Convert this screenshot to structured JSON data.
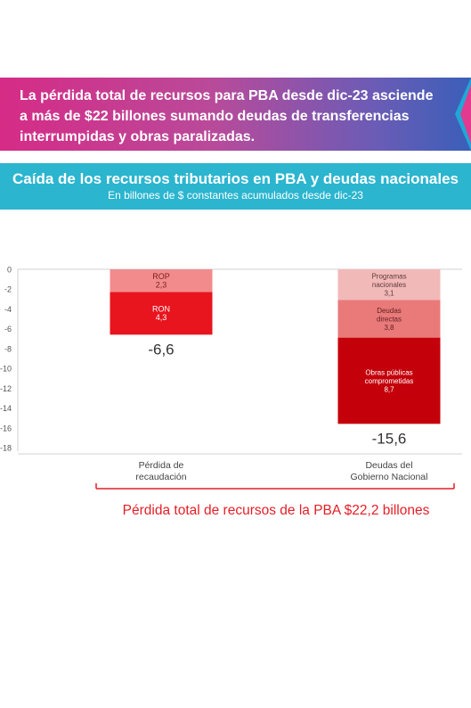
{
  "headline": "La pérdida total de recursos para PBA desde dic-23 asciende a más de $22 billones sumando deudas de transferencias interrumpidas y obras paralizadas.",
  "headline_lines": [
    "La pérdida total de recursos para PBA desde dic-23 asciende",
    "a más de $22 billones sumando deudas de transferencias",
    "interrumpidas y obras paralizadas."
  ],
  "colors": {
    "headline_start": "#d62b86",
    "headline_end": "#3a5fb8",
    "subheader_bg": "#2bb5cf",
    "total_text": "#e41e26"
  },
  "chart_data": {
    "type": "bar",
    "stacked": true,
    "title": "Caída de los recursos tributarios en PBA y deudas nacionales",
    "subtitle": "En billones de $ constantes acumulados desde dic-23",
    "categories": [
      "Pérdida de recaudación",
      "Deudas del Gobierno Nacional"
    ],
    "category_lines": [
      [
        "Pérdida de",
        "recaudación"
      ],
      [
        "Deudas del",
        "Gobierno Nacional"
      ]
    ],
    "ylim": [
      -18,
      0
    ],
    "yticks": [
      0,
      -2,
      -4,
      -6,
      -8,
      -10,
      -12,
      -14,
      -16,
      -18
    ],
    "grid": false,
    "bars": [
      {
        "category": "Pérdida de recaudación",
        "total": -6.6,
        "total_label": "-6,6",
        "segments": [
          {
            "name_lines": [
              "ROP"
            ],
            "value": -2.3,
            "value_label": "2,3",
            "color": "#f28b8b",
            "text_color": "#7a1f1f"
          },
          {
            "name_lines": [
              "RON"
            ],
            "value": -4.3,
            "value_label": "4,3",
            "color": "#e8141e",
            "text_color": "#ffffff"
          }
        ]
      },
      {
        "category": "Deudas del Gobierno Nacional",
        "total": -15.6,
        "total_label": "-15,6",
        "segments": [
          {
            "name_lines": [
              "Programas",
              "nacionales"
            ],
            "value": -3.1,
            "value_label": "3,1",
            "color": "#f2b9b9",
            "text_color": "#5e3a3a"
          },
          {
            "name_lines": [
              "Deudas",
              "directas"
            ],
            "value": -3.8,
            "value_label": "3,8",
            "color": "#ea7a7a",
            "text_color": "#5e1f1f"
          },
          {
            "name_lines": [
              "Obras públicas",
              "comprometidas"
            ],
            "value": -8.7,
            "value_label": "8,7",
            "color": "#c4000a",
            "text_color": "#ffffff"
          }
        ]
      }
    ],
    "total_label": "Pérdida total de recursos de la PBA $22,2 billones"
  }
}
